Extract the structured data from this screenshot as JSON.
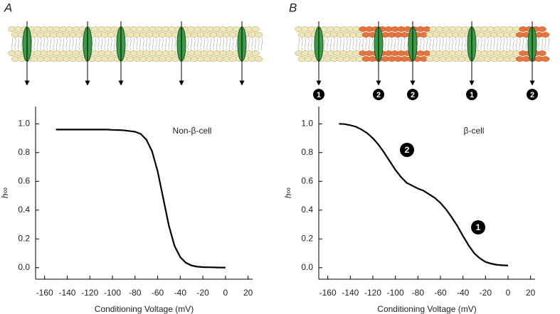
{
  "chart_data": [
    {
      "type": "line",
      "panel_label": "A",
      "annotation": "Non-β-cell",
      "xlabel": "Conditioning Voltage (mV)",
      "ylabel": "h∞",
      "x": [
        -150,
        -145,
        -140,
        -135,
        -130,
        -125,
        -120,
        -115,
        -110,
        -105,
        -100,
        -95,
        -90,
        -85,
        -80,
        -75,
        -70,
        -65,
        -60,
        -55,
        -50,
        -45,
        -40,
        -35,
        -30,
        -25,
        -20,
        -15,
        -10,
        -5,
        0
      ],
      "series": [
        {
          "color": "#000000",
          "values": [
            0.96,
            0.96,
            0.96,
            0.96,
            0.96,
            0.96,
            0.96,
            0.96,
            0.96,
            0.96,
            0.958,
            0.957,
            0.955,
            0.95,
            0.945,
            0.93,
            0.89,
            0.81,
            0.67,
            0.48,
            0.29,
            0.15,
            0.073,
            0.034,
            0.015,
            0.007,
            0.004,
            0.003,
            0.002,
            0.001,
            0.001
          ]
        }
      ],
      "xlim": [
        -168,
        24
      ],
      "ylim": [
        -0.08,
        1.12
      ],
      "xticks": [
        -160,
        -140,
        -120,
        -100,
        -80,
        -60,
        -40,
        -20,
        0,
        20
      ],
      "yticks": [
        {
          "value": 0,
          "label": "0.0"
        },
        {
          "value": 0.2,
          "label": "0.2"
        },
        {
          "value": 0.4,
          "label": "0.4"
        },
        {
          "value": 0.6,
          "label": "0.6"
        },
        {
          "value": 0.8,
          "label": "0.8"
        },
        {
          "value": 1,
          "label": "1.0"
        }
      ]
    },
    {
      "type": "line",
      "panel_label": "B",
      "annotation": "β-cell",
      "xlabel": "Conditioning Voltage (mV)",
      "ylabel": "h∞",
      "curve_markers": [
        "2",
        "1"
      ],
      "channel_markers": [
        "1",
        "2",
        "2",
        "1",
        "2"
      ],
      "x": [
        -150,
        -145,
        -140,
        -135,
        -130,
        -125,
        -120,
        -115,
        -110,
        -105,
        -100,
        -95,
        -90,
        -85,
        -80,
        -75,
        -70,
        -65,
        -60,
        -55,
        -50,
        -45,
        -40,
        -35,
        -30,
        -25,
        -20,
        -15,
        -10,
        -5,
        0
      ],
      "series": [
        {
          "color": "#000000",
          "values": [
            1.0,
            0.998,
            0.99,
            0.98,
            0.96,
            0.935,
            0.9,
            0.855,
            0.8,
            0.74,
            0.68,
            0.63,
            0.59,
            0.57,
            0.55,
            0.535,
            0.51,
            0.485,
            0.45,
            0.405,
            0.35,
            0.29,
            0.22,
            0.155,
            0.1,
            0.065,
            0.04,
            0.028,
            0.02,
            0.017,
            0.015
          ]
        }
      ],
      "xlim": [
        -168,
        24
      ],
      "ylim": [
        -0.08,
        1.12
      ],
      "xticks": [
        -160,
        -140,
        -120,
        -100,
        -80,
        -60,
        -40,
        -20,
        0,
        20
      ],
      "yticks": [
        {
          "value": 0,
          "label": "0.0"
        },
        {
          "value": 0.2,
          "label": "0.2"
        },
        {
          "value": 0.4,
          "label": "0.4"
        },
        {
          "value": 0.6,
          "label": "0.6"
        },
        {
          "value": 0.8,
          "label": "0.8"
        },
        {
          "value": 1,
          "label": "1.0"
        }
      ]
    }
  ]
}
